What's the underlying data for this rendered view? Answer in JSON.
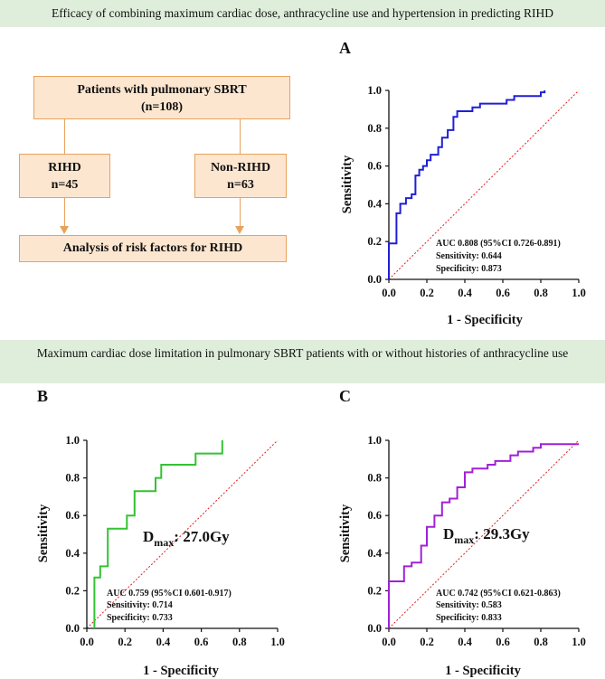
{
  "banners": {
    "top": "Efficacy of combining maximum cardiac dose, anthracycline use and hypertension in predicting RIHD",
    "middle": "Maximum cardiac dose limitation in pulmonary SBRT patients with or without histories of anthracycline use"
  },
  "flowchart": {
    "top_box": {
      "line1": "Patients with pulmonary SBRT",
      "line2": "(n=108)"
    },
    "left_box": {
      "line1": "RIHD",
      "line2": "n=45"
    },
    "right_box": {
      "line1": "Non-RIHD",
      "line2": "n=63"
    },
    "bottom_box": "Analysis of risk factors for RIHD"
  },
  "colors": {
    "curve_a": "#1f1fd6",
    "curve_b": "#33c233",
    "curve_c": "#a020d8",
    "reference": "#e02020",
    "banner": "#dfeedb",
    "box_fill": "#fde6cf",
    "box_border": "#e8a25b"
  },
  "chart_data": [
    {
      "panel": "A",
      "type": "line",
      "xlabel": "1 - Specificity",
      "ylabel": "Sensitivity",
      "xlim": [
        0,
        1
      ],
      "ylim": [
        0,
        1
      ],
      "x_ticks": [
        "0.0",
        "0.2",
        "0.4",
        "0.6",
        "0.8",
        "1.0"
      ],
      "y_ticks": [
        "0.0",
        "0.2",
        "0.4",
        "0.6",
        "0.8",
        "1.0"
      ],
      "annotations": [
        "AUC 0.808 (95%CI 0.726-0.891)",
        "Sensitivity: 0.644",
        "Specificity: 0.873"
      ],
      "series": [
        {
          "name": "ROC",
          "points": [
            [
              0,
              0
            ],
            [
              0,
              0.19
            ],
            [
              0.04,
              0.19
            ],
            [
              0.04,
              0.35
            ],
            [
              0.06,
              0.35
            ],
            [
              0.06,
              0.4
            ],
            [
              0.09,
              0.4
            ],
            [
              0.09,
              0.43
            ],
            [
              0.12,
              0.43
            ],
            [
              0.12,
              0.45
            ],
            [
              0.14,
              0.45
            ],
            [
              0.14,
              0.55
            ],
            [
              0.16,
              0.55
            ],
            [
              0.16,
              0.58
            ],
            [
              0.18,
              0.58
            ],
            [
              0.18,
              0.6
            ],
            [
              0.2,
              0.6
            ],
            [
              0.2,
              0.63
            ],
            [
              0.22,
              0.63
            ],
            [
              0.22,
              0.66
            ],
            [
              0.26,
              0.66
            ],
            [
              0.26,
              0.7
            ],
            [
              0.28,
              0.7
            ],
            [
              0.28,
              0.75
            ],
            [
              0.31,
              0.75
            ],
            [
              0.31,
              0.79
            ],
            [
              0.34,
              0.79
            ],
            [
              0.34,
              0.86
            ],
            [
              0.36,
              0.86
            ],
            [
              0.36,
              0.89
            ],
            [
              0.44,
              0.89
            ],
            [
              0.44,
              0.91
            ],
            [
              0.48,
              0.91
            ],
            [
              0.48,
              0.93
            ],
            [
              0.62,
              0.93
            ],
            [
              0.62,
              0.95
            ],
            [
              0.66,
              0.95
            ],
            [
              0.66,
              0.97
            ],
            [
              0.8,
              0.97
            ],
            [
              0.8,
              0.99
            ],
            [
              0.82,
              0.99
            ],
            [
              0.82,
              1.0
            ]
          ]
        }
      ]
    },
    {
      "panel": "B",
      "type": "line",
      "xlabel": "1 - Specificity",
      "ylabel": "Sensitivity",
      "xlim": [
        0,
        1
      ],
      "ylim": [
        0,
        1
      ],
      "x_ticks": [
        "0.0",
        "0.2",
        "0.4",
        "0.6",
        "0.8",
        "1.0"
      ],
      "y_ticks": [
        "0.0",
        "0.2",
        "0.4",
        "0.6",
        "0.8",
        "1.0"
      ],
      "annotations": [
        "AUC 0.759 (95%CI 0.601-0.917)",
        "Sensitivity: 0.714",
        "Specificity: 0.733"
      ],
      "dmax_label": {
        "main": "D",
        "sub": "max",
        "value": ": 27.0Gy"
      },
      "series": [
        {
          "name": "ROC",
          "points": [
            [
              0.04,
              0
            ],
            [
              0.04,
              0.27
            ],
            [
              0.07,
              0.27
            ],
            [
              0.07,
              0.33
            ],
            [
              0.11,
              0.33
            ],
            [
              0.11,
              0.53
            ],
            [
              0.21,
              0.53
            ],
            [
              0.21,
              0.6
            ],
            [
              0.25,
              0.6
            ],
            [
              0.25,
              0.73
            ],
            [
              0.36,
              0.73
            ],
            [
              0.36,
              0.8
            ],
            [
              0.39,
              0.8
            ],
            [
              0.39,
              0.87
            ],
            [
              0.57,
              0.87
            ],
            [
              0.57,
              0.93
            ],
            [
              0.71,
              0.93
            ],
            [
              0.71,
              1.0
            ]
          ]
        }
      ]
    },
    {
      "panel": "C",
      "type": "line",
      "xlabel": "1 - Specificity",
      "ylabel": "Sensitivity",
      "xlim": [
        0,
        1
      ],
      "ylim": [
        0,
        1
      ],
      "x_ticks": [
        "0.0",
        "0.2",
        "0.4",
        "0.6",
        "0.8",
        "1.0"
      ],
      "y_ticks": [
        "0.0",
        "0.2",
        "0.4",
        "0.6",
        "0.8",
        "1.0"
      ],
      "annotations": [
        "AUC 0.742 (95%CI 0.621-0.863)",
        "Sensitivity: 0.583",
        "Specificity: 0.833"
      ],
      "dmax_label": {
        "main": "D",
        "sub": "max",
        "value": ": 29.3Gy"
      },
      "series": [
        {
          "name": "ROC",
          "points": [
            [
              0,
              0
            ],
            [
              0,
              0.25
            ],
            [
              0.08,
              0.25
            ],
            [
              0.08,
              0.33
            ],
            [
              0.12,
              0.33
            ],
            [
              0.12,
              0.35
            ],
            [
              0.17,
              0.35
            ],
            [
              0.17,
              0.44
            ],
            [
              0.2,
              0.44
            ],
            [
              0.2,
              0.54
            ],
            [
              0.24,
              0.54
            ],
            [
              0.24,
              0.6
            ],
            [
              0.28,
              0.6
            ],
            [
              0.28,
              0.67
            ],
            [
              0.32,
              0.67
            ],
            [
              0.32,
              0.69
            ],
            [
              0.36,
              0.69
            ],
            [
              0.36,
              0.75
            ],
            [
              0.4,
              0.75
            ],
            [
              0.4,
              0.83
            ],
            [
              0.44,
              0.83
            ],
            [
              0.44,
              0.85
            ],
            [
              0.52,
              0.85
            ],
            [
              0.52,
              0.87
            ],
            [
              0.56,
              0.87
            ],
            [
              0.56,
              0.89
            ],
            [
              0.64,
              0.89
            ],
            [
              0.64,
              0.92
            ],
            [
              0.68,
              0.92
            ],
            [
              0.68,
              0.94
            ],
            [
              0.76,
              0.94
            ],
            [
              0.76,
              0.96
            ],
            [
              0.8,
              0.96
            ],
            [
              0.8,
              0.98
            ],
            [
              1.0,
              0.98
            ]
          ]
        }
      ]
    }
  ]
}
